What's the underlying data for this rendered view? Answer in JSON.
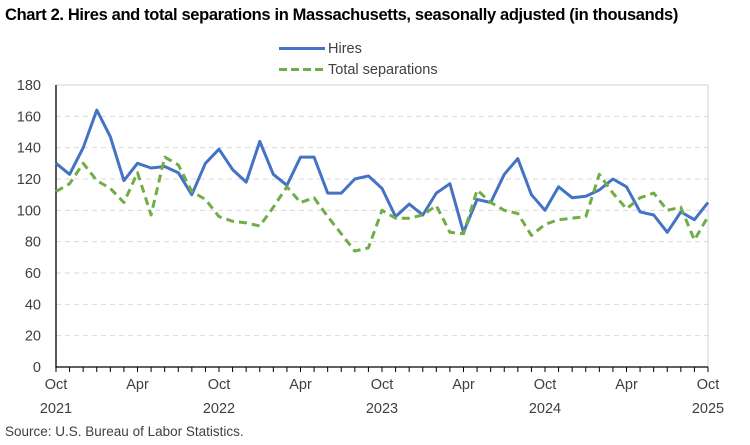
{
  "title": "Chart 2. Hires and total separations in Massachusetts, seasonally adjusted (in thousands)",
  "legend": {
    "items": [
      {
        "label": "Hires",
        "color": "#4472C4",
        "style": "solid"
      },
      {
        "label": "Total separations",
        "color": "#70AD47",
        "style": "dashed"
      }
    ]
  },
  "source": "Source: U.S. Bureau of Labor Statistics.",
  "chart_data": {
    "type": "line",
    "title": "Chart 2. Hires and total separations in Massachusetts, seasonally adjusted (in thousands)",
    "xlabel": "",
    "ylabel": "",
    "ylim": [
      0,
      180
    ],
    "yticks": [
      0,
      20,
      40,
      60,
      80,
      100,
      120,
      140,
      160,
      180
    ],
    "grid": true,
    "legend_position": "top",
    "x_tick_labels": [
      {
        "index": 0,
        "month": "Oct",
        "year": "2021"
      },
      {
        "index": 6,
        "month": "Apr",
        "year": ""
      },
      {
        "index": 12,
        "month": "Oct",
        "year": "2022"
      },
      {
        "index": 18,
        "month": "Apr",
        "year": ""
      },
      {
        "index": 24,
        "month": "Oct",
        "year": "2023"
      },
      {
        "index": 30,
        "month": "Apr",
        "year": ""
      },
      {
        "index": 36,
        "month": "Oct",
        "year": "2024"
      },
      {
        "index": 42,
        "month": "Apr",
        "year": ""
      },
      {
        "index": 48,
        "month": "Oct",
        "year": "2025"
      }
    ],
    "x": [
      "Oct 2021",
      "Nov 2021",
      "Dec 2021",
      "Jan 2022",
      "Feb 2022",
      "Mar 2022",
      "Apr 2022",
      "May 2022",
      "Jun 2022",
      "Jul 2022",
      "Aug 2022",
      "Sep 2022",
      "Oct 2022",
      "Nov 2022",
      "Dec 2022",
      "Jan 2023",
      "Feb 2023",
      "Mar 2023",
      "Apr 2023",
      "May 2023",
      "Jun 2023",
      "Jul 2023",
      "Aug 2023",
      "Sep 2023",
      "Oct 2023",
      "Nov 2023",
      "Dec 2023",
      "Jan 2024",
      "Feb 2024",
      "Mar 2024",
      "Apr 2024",
      "May 2024",
      "Jun 2024",
      "Jul 2024",
      "Aug 2024",
      "Sep 2024",
      "Oct 2024",
      "Nov 2024",
      "Dec 2024",
      "Jan 2025",
      "Feb 2025",
      "Mar 2025",
      "Apr 2025",
      "May 2025",
      "Jun 2025",
      "Jul 2025",
      "Aug 2025",
      "Sep 2025",
      "Oct 2025"
    ],
    "series": [
      {
        "name": "Hires",
        "color": "#4472C4",
        "style": "solid",
        "values": [
          130,
          123,
          140,
          164,
          147,
          119,
          130,
          127,
          128,
          124,
          110,
          130,
          139,
          126,
          118,
          144,
          123,
          116,
          134,
          134,
          111,
          111,
          120,
          122,
          114,
          96,
          104,
          97,
          111,
          117,
          86,
          107,
          105,
          123,
          133,
          110,
          100,
          115,
          108,
          109,
          113,
          120,
          115,
          99,
          97,
          86,
          99,
          94,
          105
        ]
      },
      {
        "name": "Total separations",
        "color": "#70AD47",
        "style": "dashed",
        "values": [
          112,
          117,
          130,
          119,
          114,
          105,
          124,
          97,
          134,
          129,
          112,
          107,
          96,
          93,
          92,
          90,
          102,
          115,
          105,
          108,
          96,
          85,
          74,
          76,
          100,
          95,
          95,
          97,
          103,
          86,
          85,
          113,
          105,
          100,
          98,
          84,
          91,
          94,
          95,
          96,
          123,
          111,
          101,
          108,
          111,
          100,
          102,
          81,
          96
        ]
      }
    ]
  }
}
